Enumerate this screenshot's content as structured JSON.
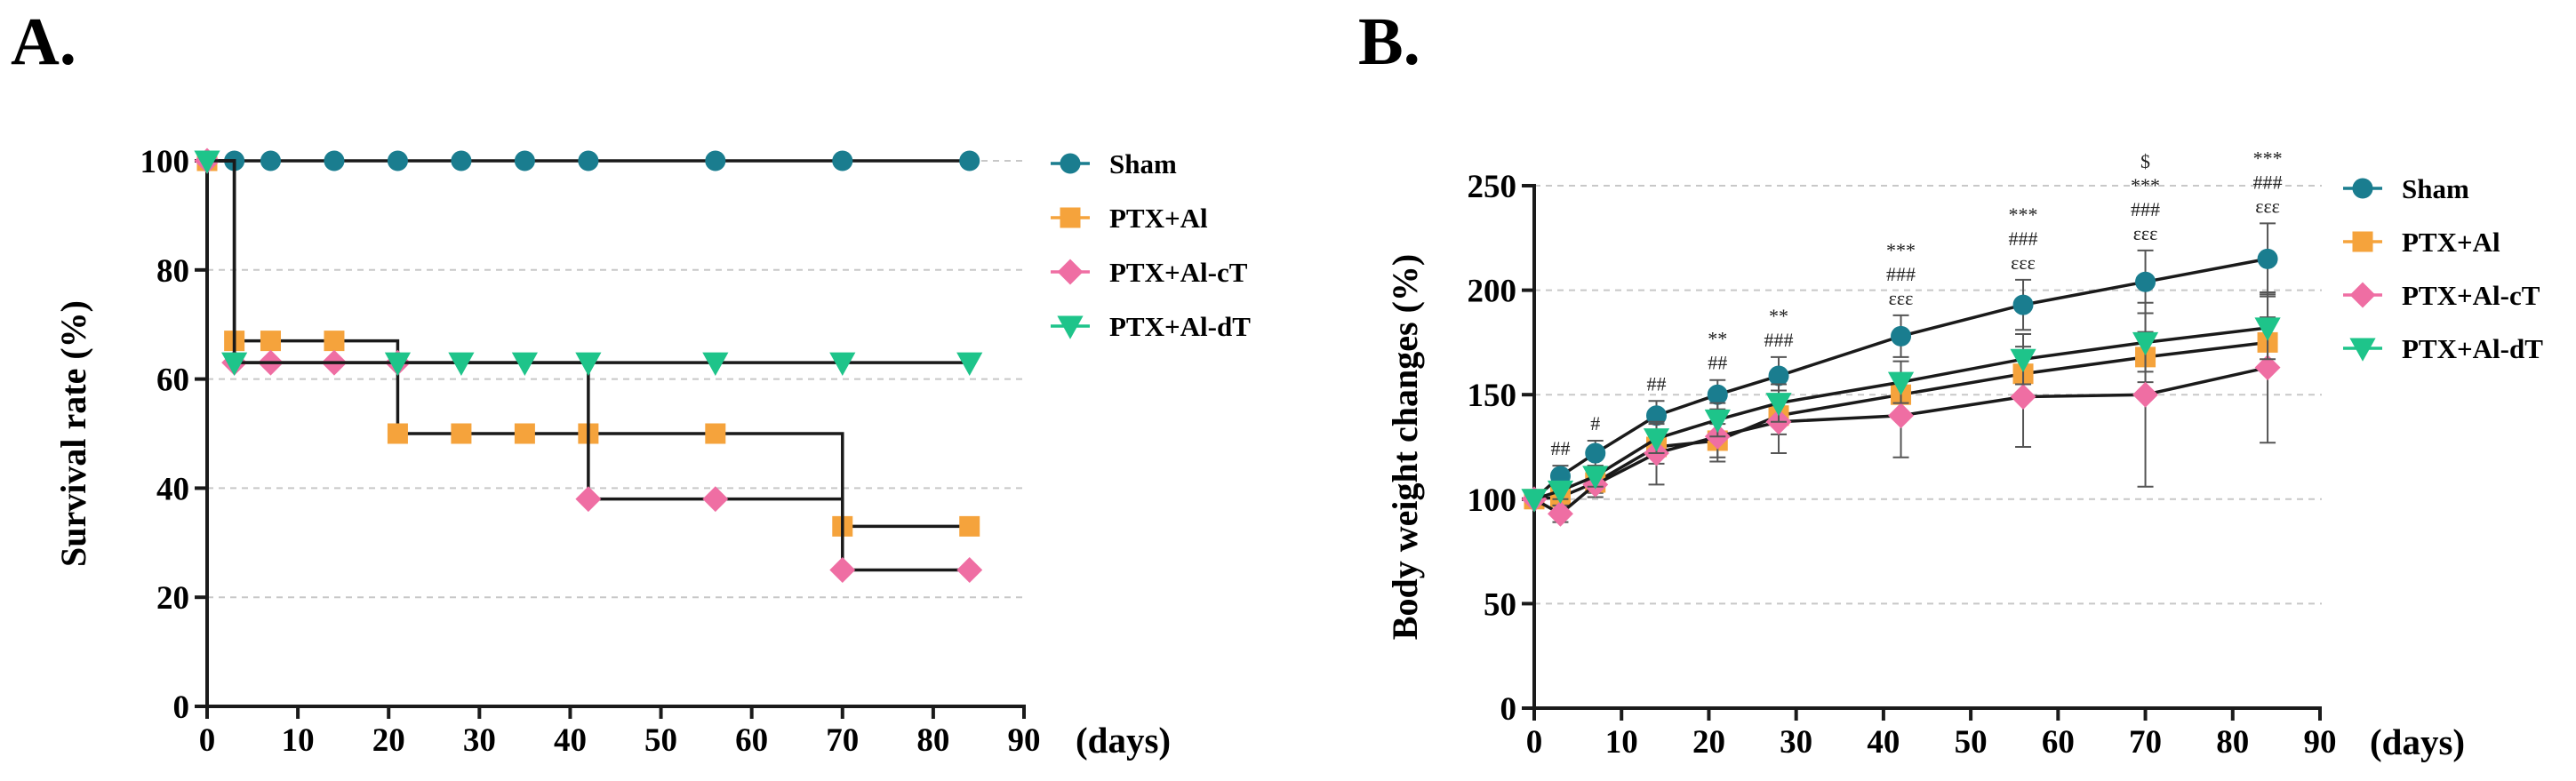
{
  "figure": {
    "panels": [
      {
        "letter": "A."
      },
      {
        "letter": "B."
      }
    ]
  },
  "colors": {
    "sham": "#1a7d8f",
    "ptx_al": "#f5a33c",
    "ptx_al_ct": "#ef6ea3",
    "ptx_al_dt": "#1ec48a",
    "line": "#1a1a1a",
    "grid": "#c8c8c8"
  },
  "chart_data": [
    {
      "type": "line",
      "panel": "A.",
      "title": "",
      "xlabel": "(days)",
      "ylabel": "Survival rate (%)",
      "xlim": [
        0,
        90
      ],
      "ylim": [
        0,
        100
      ],
      "xticks": [
        0,
        10,
        20,
        30,
        40,
        50,
        60,
        70,
        80,
        90
      ],
      "yticks": [
        0,
        20,
        40,
        60,
        80,
        100
      ],
      "grid": "horizontal dashed",
      "legend_position": "right",
      "series": [
        {
          "name": "Sham",
          "marker": "circle",
          "color_key": "sham",
          "step": false,
          "x": [
            0,
            3,
            7,
            14,
            21,
            28,
            35,
            42,
            56,
            70,
            84
          ],
          "y": [
            100,
            100,
            100,
            100,
            100,
            100,
            100,
            100,
            100,
            100,
            100
          ]
        },
        {
          "name": "PTX+Al",
          "marker": "square",
          "color_key": "ptx_al",
          "step": true,
          "x": [
            0,
            3,
            7,
            14,
            21,
            28,
            35,
            42,
            56,
            70,
            84
          ],
          "y": [
            100,
            67,
            67,
            67,
            50,
            50,
            50,
            50,
            50,
            33,
            33
          ]
        },
        {
          "name": "PTX+Al-cT",
          "marker": "diamond",
          "color_key": "ptx_al_ct",
          "step": true,
          "x": [
            0,
            3,
            7,
            14,
            21,
            42,
            56,
            70,
            84
          ],
          "y": [
            100,
            63,
            63,
            63,
            63,
            38,
            38,
            25,
            25
          ]
        },
        {
          "name": "PTX+Al-dT",
          "marker": "triangle-down",
          "color_key": "ptx_al_dt",
          "step": true,
          "x": [
            0,
            3,
            21,
            28,
            35,
            42,
            56,
            70,
            84
          ],
          "y": [
            100,
            63,
            63,
            63,
            63,
            63,
            63,
            63,
            63
          ]
        }
      ]
    },
    {
      "type": "line",
      "panel": "B.",
      "title": "",
      "xlabel": "(days)",
      "ylabel": "Body weight changes (%)",
      "xlim": [
        0,
        90
      ],
      "ylim": [
        0,
        250
      ],
      "xticks": [
        0,
        10,
        20,
        30,
        40,
        50,
        60,
        70,
        80,
        90
      ],
      "yticks": [
        0,
        50,
        100,
        150,
        200,
        250
      ],
      "grid": "horizontal dashed",
      "legend_position": "right",
      "series": [
        {
          "name": "Sham",
          "marker": "circle",
          "color_key": "sham",
          "x": [
            0,
            3,
            7,
            14,
            21,
            28,
            42,
            56,
            70,
            84
          ],
          "y": [
            100,
            111,
            122,
            140,
            150,
            159,
            178,
            193,
            204,
            215
          ],
          "err": [
            0,
            5,
            6,
            7,
            7,
            9,
            10,
            12,
            15,
            17
          ]
        },
        {
          "name": "PTX+Al",
          "marker": "square",
          "color_key": "ptx_al",
          "x": [
            0,
            3,
            7,
            14,
            21,
            28,
            42,
            56,
            70,
            84
          ],
          "y": [
            100,
            101,
            108,
            125,
            128,
            140,
            150,
            160,
            168,
            175
          ],
          "err": [
            0,
            4,
            5,
            8,
            8,
            9,
            10,
            10,
            12,
            12
          ]
        },
        {
          "name": "PTX+Al-cT",
          "marker": "diamond",
          "color_key": "ptx_al_ct",
          "x": [
            0,
            3,
            7,
            14,
            21,
            28,
            42,
            56,
            70,
            84
          ],
          "y": [
            100,
            93,
            107,
            122,
            130,
            137,
            140,
            149,
            150,
            163
          ],
          "err": [
            0,
            4,
            6,
            15,
            12,
            15,
            20,
            24,
            44,
            36
          ]
        },
        {
          "name": "PTX+Al-dT",
          "marker": "triangle-down",
          "color_key": "ptx_al_dt",
          "x": [
            0,
            3,
            7,
            14,
            21,
            28,
            42,
            56,
            70,
            84
          ],
          "y": [
            100,
            104,
            111,
            129,
            138,
            146,
            156,
            167,
            175,
            182
          ],
          "err": [
            0,
            4,
            5,
            7,
            8,
            9,
            10,
            12,
            14,
            15
          ]
        }
      ],
      "annotations": [
        {
          "x": 3,
          "lines": [
            "##"
          ]
        },
        {
          "x": 7,
          "lines": [
            "#"
          ]
        },
        {
          "x": 14,
          "lines": [
            "##"
          ]
        },
        {
          "x": 21,
          "lines": [
            "**",
            "##"
          ]
        },
        {
          "x": 28,
          "lines": [
            "**",
            "###"
          ]
        },
        {
          "x": 42,
          "lines": [
            "***",
            "###",
            "εεε"
          ]
        },
        {
          "x": 56,
          "lines": [
            "***",
            "###",
            "εεε"
          ]
        },
        {
          "x": 70,
          "lines": [
            "$",
            "***",
            "###",
            "εεε"
          ]
        },
        {
          "x": 84,
          "lines": [
            "***",
            "###",
            "εεε"
          ]
        }
      ]
    }
  ]
}
